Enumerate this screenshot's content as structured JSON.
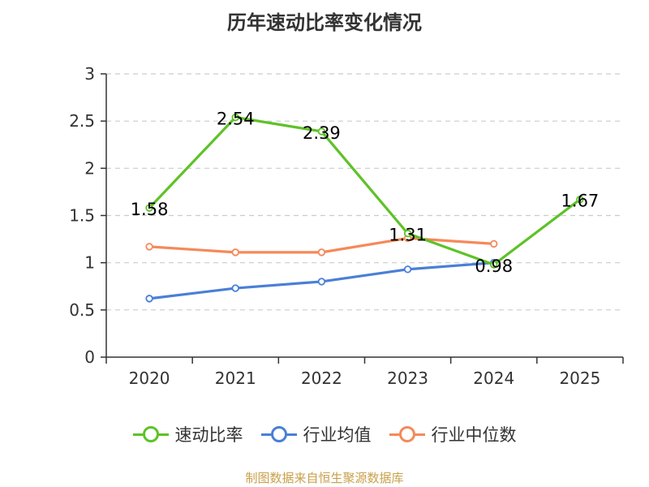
{
  "chart_data": {
    "type": "line",
    "title": "历年速动比率变化情况",
    "categories": [
      "2020",
      "2021",
      "2022",
      "2023",
      "2024",
      "2025"
    ],
    "y_ticks": [
      "0",
      "0.5",
      "1",
      "1.5",
      "2",
      "2.5",
      "3"
    ],
    "ylim": [
      0,
      3
    ],
    "grid": true,
    "legend_position": "bottom",
    "series": [
      {
        "name": "速动比率",
        "color": "#5ec227",
        "values": [
          1.58,
          2.54,
          2.39,
          1.31,
          0.98,
          1.67
        ],
        "labels": [
          "1.58",
          "2.54",
          "2.39",
          "1.31",
          "0.98",
          "1.67"
        ]
      },
      {
        "name": "行业均值",
        "color": "#4a7fd6",
        "values": [
          0.62,
          0.73,
          0.8,
          0.93,
          1.0,
          null
        ]
      },
      {
        "name": "行业中位数",
        "color": "#f5895a",
        "values": [
          1.17,
          1.11,
          1.11,
          1.26,
          1.2,
          null
        ]
      }
    ]
  },
  "source_note": "制图数据来自恒生聚源数据库"
}
